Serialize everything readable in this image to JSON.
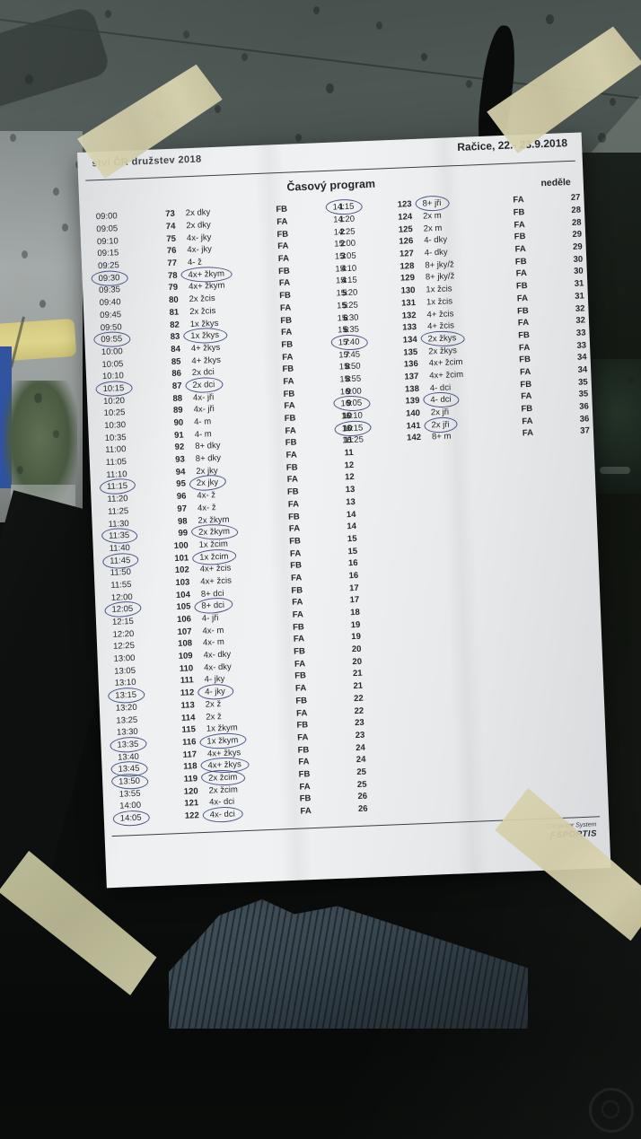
{
  "header": {
    "event_title": "ství ČR družstev 2018",
    "location_date": "Račice,  22.- 23.9.2018",
    "program_title": "Časový program",
    "day_label": "neděle"
  },
  "footer": {
    "line1": "Computer System",
    "logo_glyph": "Ƒ",
    "line2": "SPORTIS"
  },
  "colors": {
    "pen_blue": "#2b3a78",
    "tape_beige": "#d8d2ad",
    "paper_white": "#eef0f1",
    "glass_slate": "#4b5551"
  },
  "schedule": {
    "row_format": [
      "time",
      "race_number",
      "boat_class",
      "phase",
      "order",
      "circled"
    ],
    "left_rows": [
      [
        "09:00",
        "73",
        "2x dky",
        "FB",
        "1",
        0
      ],
      [
        "09:05",
        "74",
        "2x dky",
        "FA",
        "1",
        0
      ],
      [
        "09:10",
        "75",
        "4x- jky",
        "FB",
        "2",
        0
      ],
      [
        "09:15",
        "76",
        "4x- jky",
        "FA",
        "2",
        0
      ],
      [
        "09:25",
        "77",
        "4- ž",
        "FA",
        "3",
        0
      ],
      [
        "09:30",
        "78",
        "4x+ žkym",
        "FB",
        "4",
        1
      ],
      [
        "09:35",
        "79",
        "4x+ žkym",
        "FA",
        "4",
        0
      ],
      [
        "09:40",
        "80",
        "2x žcis",
        "FB",
        "5",
        0
      ],
      [
        "09:45",
        "81",
        "2x žcis",
        "FA",
        "5",
        0
      ],
      [
        "09:50",
        "82",
        "1x žkys",
        "FB",
        "6",
        0
      ],
      [
        "09:55",
        "83",
        "1x žkys",
        "FA",
        "6",
        1
      ],
      [
        "10:00",
        "84",
        "4+ žkys",
        "FB",
        "7",
        0
      ],
      [
        "10:05",
        "85",
        "4+ žkys",
        "FA",
        "7",
        0
      ],
      [
        "10:10",
        "86",
        "2x dci",
        "FB",
        "8",
        0
      ],
      [
        "10:15",
        "87",
        "2x dci",
        "FA",
        "8",
        1
      ],
      [
        "10:20",
        "88",
        "4x- jři",
        "FB",
        "9",
        0
      ],
      [
        "10:25",
        "89",
        "4x- jři",
        "FA",
        "9",
        0
      ],
      [
        "10:30",
        "90",
        "4- m",
        "FB",
        "10",
        0
      ],
      [
        "10:35",
        "91",
        "4- m",
        "FA",
        "10",
        0
      ],
      [
        "11:00",
        "92",
        "8+ dky",
        "FB",
        "11",
        0
      ],
      [
        "11:05",
        "93",
        "8+ dky",
        "FA",
        "11",
        0
      ],
      [
        "11:10",
        "94",
        "2x jky",
        "FB",
        "12",
        0
      ],
      [
        "11:15",
        "95",
        "2x jky",
        "FA",
        "12",
        1
      ],
      [
        "11:20",
        "96",
        "4x- ž",
        "FB",
        "13",
        0
      ],
      [
        "11:25",
        "97",
        "4x- ž",
        "FA",
        "13",
        0
      ],
      [
        "11:30",
        "98",
        "2x žkym",
        "FB",
        "14",
        0
      ],
      [
        "11:35",
        "99",
        "2x žkym",
        "FA",
        "14",
        1
      ],
      [
        "11:40",
        "100",
        "1x žcim",
        "FB",
        "15",
        0
      ],
      [
        "11:45",
        "101",
        "1x žcim",
        "FA",
        "15",
        1
      ],
      [
        "11:50",
        "102",
        "4x+ žcis",
        "FB",
        "16",
        0
      ],
      [
        "11:55",
        "103",
        "4x+ žcis",
        "FA",
        "16",
        0
      ],
      [
        "12:00",
        "104",
        "8+ dci",
        "FB",
        "17",
        0
      ],
      [
        "12:05",
        "105",
        "8+ dci",
        "FA",
        "17",
        1
      ],
      [
        "12:15",
        "106",
        "4- jři",
        "FA",
        "18",
        0
      ],
      [
        "12:20",
        "107",
        "4x- m",
        "FB",
        "19",
        0
      ],
      [
        "12:25",
        "108",
        "4x- m",
        "FA",
        "19",
        0
      ],
      [
        "13:00",
        "109",
        "4x- dky",
        "FB",
        "20",
        0
      ],
      [
        "13:05",
        "110",
        "4x- dky",
        "FA",
        "20",
        0
      ],
      [
        "13:10",
        "111",
        "4- jky",
        "FB",
        "21",
        0
      ],
      [
        "13:15",
        "112",
        "4- jky",
        "FA",
        "21",
        1
      ],
      [
        "13:20",
        "113",
        "2x ž",
        "FB",
        "22",
        0
      ],
      [
        "13:25",
        "114",
        "2x ž",
        "FA",
        "22",
        0
      ],
      [
        "13:30",
        "115",
        "1x žkym",
        "FB",
        "23",
        0
      ],
      [
        "13:35",
        "116",
        "1x žkym",
        "FA",
        "23",
        1
      ],
      [
        "13:40",
        "117",
        "4x+ žkys",
        "FB",
        "24",
        0
      ],
      [
        "13:45",
        "118",
        "4x+ žkys",
        "FA",
        "24",
        1
      ],
      [
        "13:50",
        "119",
        "2x žcim",
        "FB",
        "25",
        1
      ],
      [
        "13:55",
        "120",
        "2x žcim",
        "FA",
        "25",
        0
      ],
      [
        "14:00",
        "121",
        "4x- dci",
        "FB",
        "26",
        0
      ],
      [
        "14:05",
        "122",
        "4x- dci",
        "FA",
        "26",
        1
      ]
    ],
    "right_rows": [
      [
        "14:15",
        "123",
        "8+ jři",
        "FA",
        "27",
        1
      ],
      [
        "14:20",
        "124",
        "2x m",
        "FB",
        "28",
        0
      ],
      [
        "14:25",
        "125",
        "2x m",
        "FA",
        "28",
        0
      ],
      [
        "15:00",
        "126",
        "4- dky",
        "FB",
        "29",
        0
      ],
      [
        "15:05",
        "127",
        "4- dky",
        "FA",
        "29",
        0
      ],
      [
        "15:10",
        "128",
        "8+ jky/ž",
        "FB",
        "30",
        0
      ],
      [
        "15:15",
        "129",
        "8+ jky/ž",
        "FA",
        "30",
        0
      ],
      [
        "15:20",
        "130",
        "1x žcis",
        "FB",
        "31",
        0
      ],
      [
        "15:25",
        "131",
        "1x žcis",
        "FA",
        "31",
        0
      ],
      [
        "15:30",
        "132",
        "4+ žcis",
        "FB",
        "32",
        0
      ],
      [
        "15:35",
        "133",
        "4+ žcis",
        "FA",
        "32",
        0
      ],
      [
        "15:40",
        "134",
        "2x žkys",
        "FB",
        "33",
        1
      ],
      [
        "15:45",
        "135",
        "2x žkys",
        "FA",
        "33",
        0
      ],
      [
        "15:50",
        "136",
        "4x+ žcim",
        "FB",
        "34",
        0
      ],
      [
        "15:55",
        "137",
        "4x+ žcim",
        "FA",
        "34",
        0
      ],
      [
        "16:00",
        "138",
        "4- dci",
        "FB",
        "35",
        0
      ],
      [
        "16:05",
        "139",
        "4- dci",
        "FA",
        "35",
        1
      ],
      [
        "16:10",
        "140",
        "2x jři",
        "FB",
        "36",
        0
      ],
      [
        "16:15",
        "141",
        "2x jři",
        "FA",
        "36",
        1
      ],
      [
        "16:25",
        "142",
        "8+ m",
        "FA",
        "37",
        0
      ]
    ]
  }
}
